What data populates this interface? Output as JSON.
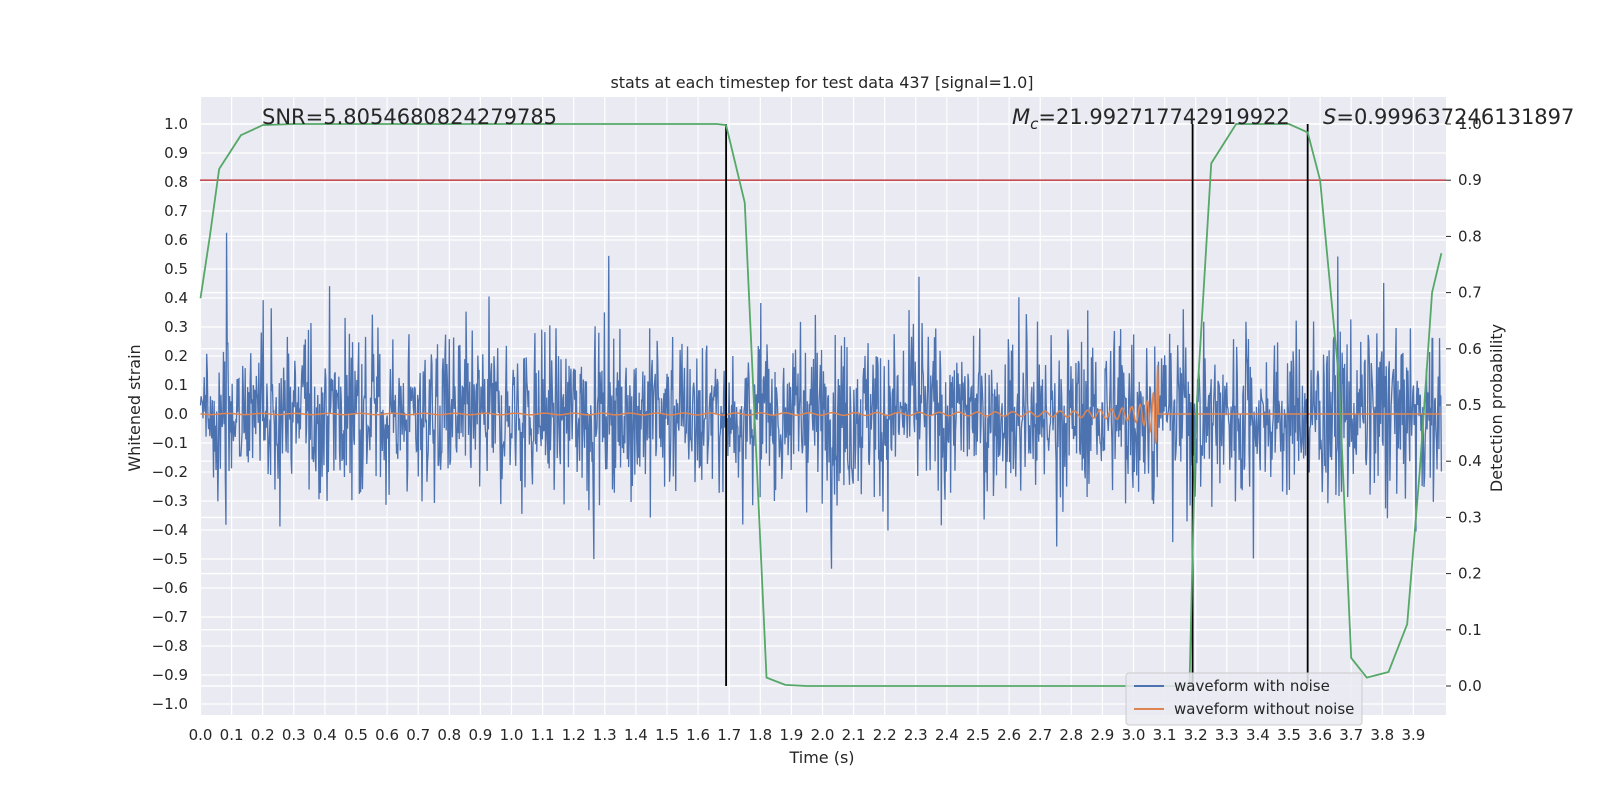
{
  "chart_data": {
    "type": "line",
    "title": "stats at each timestep for test data 437 [signal=1.0]",
    "xlabel": "Time (s)",
    "ylabel": "Whitened strain",
    "ylabel_right": "Detection probability",
    "xlim": [
      0.0,
      4.0
    ],
    "ylim": [
      -1.06,
      1.1
    ],
    "ylim_right": [
      -0.05,
      1.05
    ],
    "xticks": [
      "0.0",
      "0.1",
      "0.2",
      "0.3",
      "0.4",
      "0.5",
      "0.6",
      "0.7",
      "0.8",
      "0.9",
      "1.0",
      "1.1",
      "1.2",
      "1.3",
      "1.4",
      "1.5",
      "1.6",
      "1.7",
      "1.8",
      "1.9",
      "2.0",
      "2.1",
      "2.2",
      "2.3",
      "2.4",
      "2.5",
      "2.6",
      "2.7",
      "2.8",
      "2.9",
      "3.0",
      "3.1",
      "3.2",
      "3.3",
      "3.4",
      "3.5",
      "3.6",
      "3.7",
      "3.8",
      "3.9"
    ],
    "yticks": [
      "1.0",
      "0.9",
      "0.8",
      "0.7",
      "0.6",
      "0.5",
      "0.4",
      "0.3",
      "0.2",
      "0.1",
      "0.0",
      "−0.1",
      "−0.2",
      "−0.3",
      "−0.4",
      "−0.5",
      "−0.6",
      "−0.7",
      "−0.8",
      "−0.9",
      "−1.0"
    ],
    "yticks_right": [
      "1.0",
      "0.9",
      "0.8",
      "0.7",
      "0.6",
      "0.5",
      "0.4",
      "0.3",
      "0.2",
      "0.1",
      "0.0"
    ],
    "grid": true,
    "legend_position": "bottom-right",
    "annotations": {
      "snr": "SNR=5.8054680824279785",
      "mc_symbol": "M",
      "mc_subscript": "c",
      "mc_value": "=21.992717742919922",
      "s_symbol": "S",
      "s_value": "=0.999637246131897"
    },
    "threshold_line": {
      "y_right": 0.9,
      "color": "#c44e52"
    },
    "vertical_lines": [
      1.69,
      3.19,
      3.56
    ],
    "series": [
      {
        "name": "waveform with noise",
        "color": "#4c72b0",
        "axis": "left",
        "description_stats": {
          "envelope_min": -0.94,
          "envelope_max": 1.0,
          "typical_amplitude": 0.3
        }
      },
      {
        "name": "waveform without noise",
        "color": "#dd8452",
        "axis": "left",
        "chirp": {
          "start": 0.0,
          "merger": 3.08,
          "initial_amplitude": 0.01,
          "peak_amplitude": 0.31
        }
      },
      {
        "name": "Detection probability",
        "color": "#55a868",
        "axis": "right",
        "x": [
          0.0,
          0.03,
          0.06,
          0.13,
          0.2,
          0.3,
          1.0,
          1.6,
          1.66,
          1.69,
          1.75,
          1.82,
          1.88,
          1.95,
          2.5,
          3.18,
          3.2,
          3.25,
          3.33,
          3.4,
          3.5,
          3.56,
          3.6,
          3.66,
          3.7,
          3.75,
          3.82,
          3.88,
          3.92,
          3.96,
          3.99
        ],
        "y": [
          0.69,
          0.8,
          0.92,
          0.98,
          0.998,
          1.0,
          1.0,
          1.0,
          1.0,
          0.998,
          0.86,
          0.015,
          0.002,
          0.0,
          0.0,
          0.0,
          0.47,
          0.93,
          1.0,
          1.0,
          1.0,
          0.985,
          0.9,
          0.55,
          0.05,
          0.015,
          0.025,
          0.11,
          0.38,
          0.7,
          0.77
        ]
      }
    ]
  }
}
